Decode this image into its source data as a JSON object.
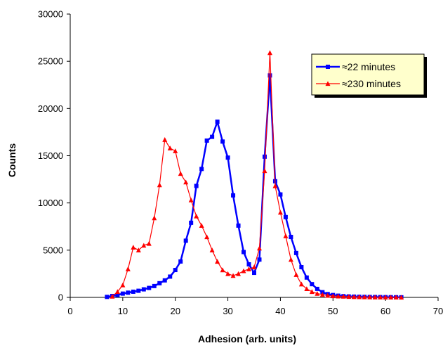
{
  "chart_data": {
    "type": "line",
    "title": "",
    "xlabel": "Adhesion (arb. units)",
    "ylabel": "Counts",
    "xlim": [
      0,
      70
    ],
    "ylim": [
      0,
      30000
    ],
    "xticks": [
      0,
      10,
      20,
      30,
      40,
      50,
      60,
      70
    ],
    "yticks": [
      0,
      5000,
      10000,
      15000,
      20000,
      25000,
      30000
    ],
    "grid": false,
    "legend_position": "top-right",
    "series": [
      {
        "name": "≈22 minutes",
        "color": "#0000ff",
        "marker": "square",
        "x": [
          7,
          8,
          9,
          10,
          11,
          12,
          13,
          14,
          15,
          16,
          17,
          18,
          19,
          20,
          21,
          22,
          23,
          24,
          25,
          26,
          27,
          28,
          29,
          30,
          31,
          32,
          33,
          34,
          35,
          36,
          37,
          38,
          39,
          40,
          41,
          42,
          43,
          44,
          45,
          46,
          47,
          48,
          49,
          50,
          51,
          52,
          53,
          54,
          55,
          56,
          57,
          58,
          59,
          60,
          61,
          62,
          63
        ],
        "y": [
          50,
          150,
          250,
          400,
          500,
          600,
          700,
          850,
          1000,
          1200,
          1500,
          1800,
          2200,
          2900,
          3800,
          6000,
          7900,
          11800,
          13600,
          16600,
          17000,
          18600,
          16500,
          14800,
          10800,
          7600,
          4800,
          3500,
          2600,
          4000,
          14900,
          23500,
          12300,
          10900,
          8500,
          6400,
          4700,
          3200,
          2100,
          1400,
          900,
          550,
          350,
          250,
          180,
          130,
          100,
          80,
          60,
          50,
          40,
          35,
          30,
          25,
          20,
          15,
          10
        ]
      },
      {
        "name": "≈230 minutes",
        "color": "#ff0000",
        "marker": "triangle",
        "x": [
          8,
          9,
          10,
          11,
          12,
          13,
          14,
          15,
          16,
          17,
          18,
          19,
          20,
          21,
          22,
          23,
          24,
          25,
          26,
          27,
          28,
          29,
          30,
          31,
          32,
          33,
          34,
          35,
          36,
          37,
          38,
          39,
          40,
          41,
          42,
          43,
          44,
          45,
          46,
          47,
          48,
          49,
          50,
          51,
          52,
          53,
          54,
          55,
          56,
          57,
          58,
          59,
          60,
          61,
          62,
          63
        ],
        "y": [
          100,
          600,
          1300,
          3000,
          5300,
          5000,
          5500,
          5700,
          8400,
          11900,
          16700,
          15800,
          15500,
          13100,
          12200,
          10300,
          8600,
          7600,
          6400,
          5000,
          3800,
          2900,
          2500,
          2300,
          2500,
          2800,
          3000,
          3200,
          5200,
          13400,
          25900,
          11800,
          9000,
          6500,
          4000,
          2400,
          1400,
          900,
          600,
          400,
          300,
          200,
          150,
          120,
          100,
          80,
          60,
          50,
          40,
          30,
          25,
          20,
          15,
          10,
          8,
          5
        ]
      }
    ]
  }
}
